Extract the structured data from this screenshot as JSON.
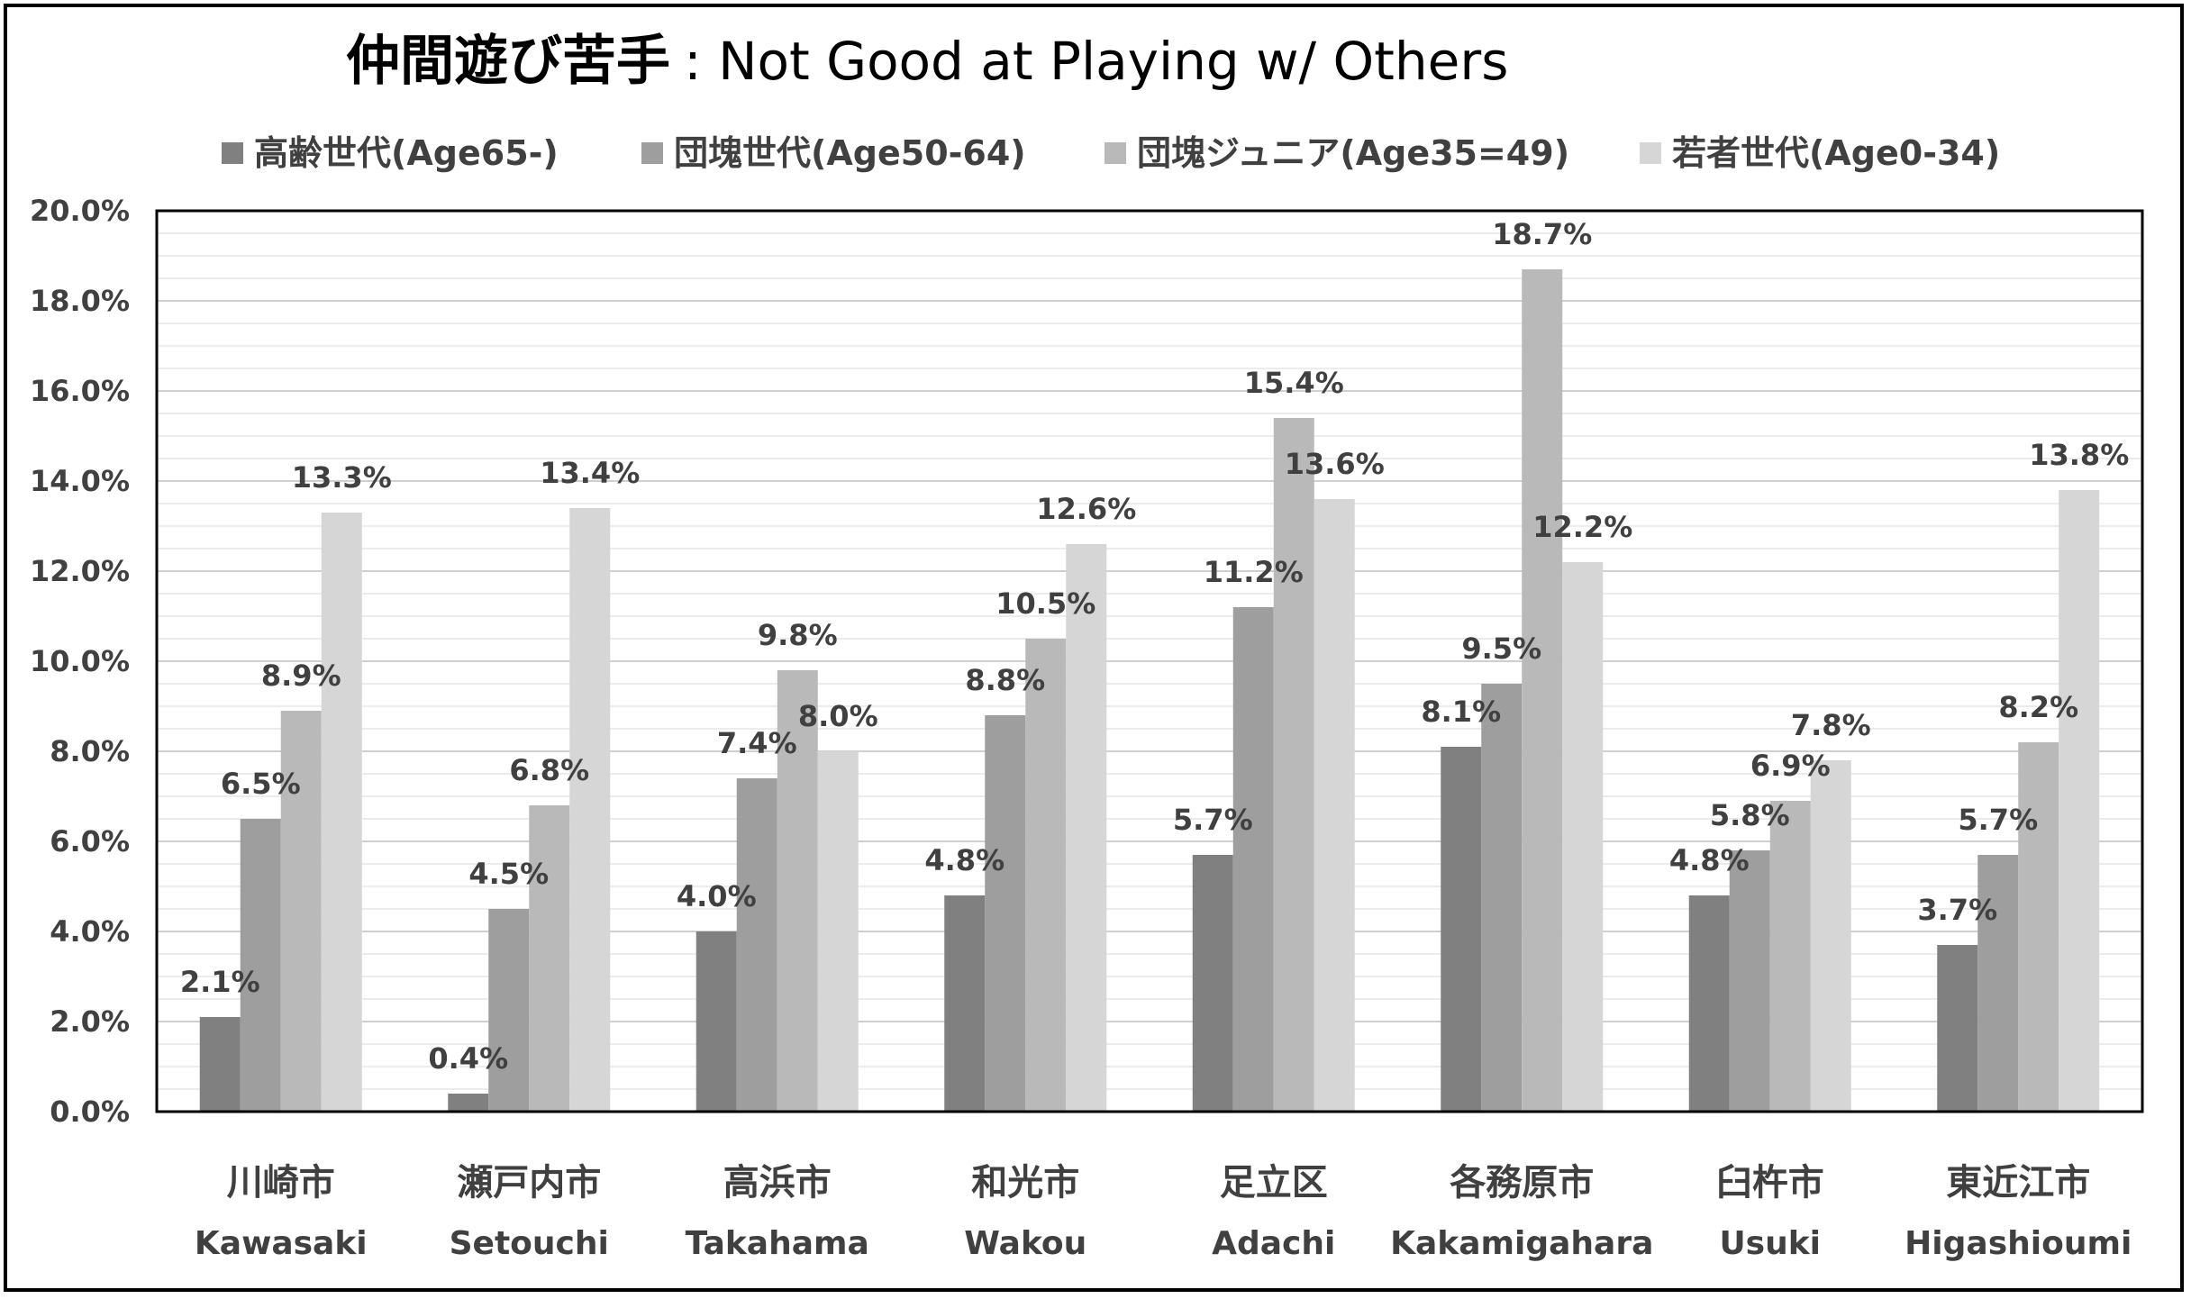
{
  "chart_data": {
    "type": "bar",
    "title_jp": "仲間遊び苦手",
    "title_en": ": Not Good at Playing w/ Others",
    "categories": [
      {
        "jp": "川崎市",
        "en": "Kawasaki"
      },
      {
        "jp": "瀬戸内市",
        "en": "Setouchi"
      },
      {
        "jp": "高浜市",
        "en": "Takahama"
      },
      {
        "jp": "和光市",
        "en": "Wakou"
      },
      {
        "jp": "足立区",
        "en": "Adachi"
      },
      {
        "jp": "各務原市",
        "en": "Kakamigahara"
      },
      {
        "jp": "臼杵市",
        "en": "Usuki"
      },
      {
        "jp": "東近江市",
        "en": "Higashioumi"
      }
    ],
    "series": [
      {
        "name": "高齢世代(Age65-)",
        "color": "#808080",
        "values": [
          2.1,
          0.4,
          4.0,
          4.8,
          5.7,
          8.1,
          4.8,
          3.7
        ]
      },
      {
        "name": "団塊世代(Age50-64)",
        "color": "#9e9e9e",
        "values": [
          6.5,
          4.5,
          7.4,
          8.8,
          11.2,
          9.5,
          5.8,
          5.7
        ]
      },
      {
        "name": "団塊ジュニア(Age35=49)",
        "color": "#b9b9b9",
        "values": [
          8.9,
          6.8,
          9.8,
          10.5,
          15.4,
          18.7,
          6.9,
          8.2
        ]
      },
      {
        "name": "若者世代(Age0-34)",
        "color": "#d6d6d6",
        "values": [
          13.3,
          13.4,
          8.0,
          12.6,
          13.6,
          12.2,
          7.8,
          13.8
        ]
      }
    ],
    "ylim": [
      0,
      20
    ],
    "ytick_step": 2,
    "y_unit": "%",
    "grid": true,
    "legend": "top"
  }
}
